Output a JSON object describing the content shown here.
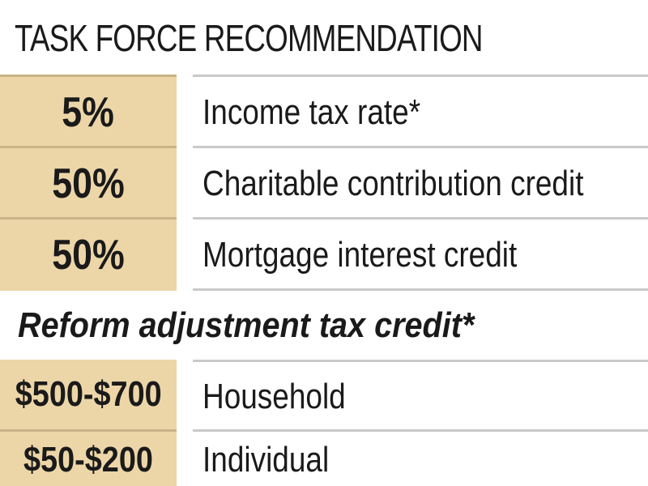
{
  "title": "TASK FORCE RECOMMENDATION",
  "recommendations": [
    {
      "value": "5%",
      "label": "Income tax rate*"
    },
    {
      "value": "50%",
      "label": "Charitable contribution credit"
    },
    {
      "value": "50%",
      "label": "Mortgage interest credit"
    }
  ],
  "reform_section": {
    "heading": "Reform adjustment tax credit*",
    "rows": [
      {
        "value": "$500-$700",
        "label": "Household"
      },
      {
        "value": "$50-$200",
        "label": "Individual"
      }
    ]
  },
  "colors": {
    "value_cell_background": "#ecd6a8",
    "text": "#1a1a1a",
    "rule": "#c9c9c9"
  }
}
